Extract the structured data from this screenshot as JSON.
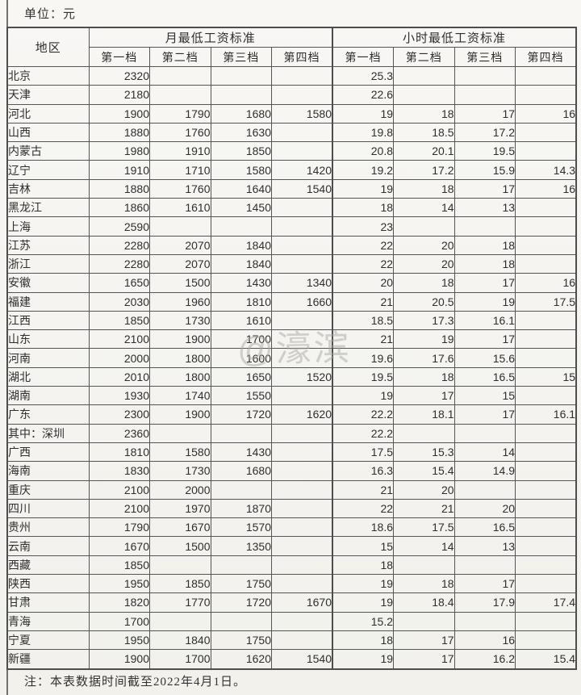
{
  "unit_label": "单位：元",
  "watermark": "@濠滨",
  "note": "注：本表数据时间截至2022年4月1日。",
  "colors": {
    "paper": "#f5f4f0",
    "border": "#555555",
    "text": "#2e2e2e",
    "watermark": "#a8a5a0"
  },
  "table": {
    "region_header": "地区",
    "group_headers": [
      "月最低工资标准",
      "小时最低工资标准"
    ],
    "tier_headers": [
      "第一档",
      "第二档",
      "第三档",
      "第四档"
    ],
    "rows": [
      {
        "region": "北京",
        "monthly": [
          "2320",
          "",
          "",
          ""
        ],
        "hourly": [
          "25.3",
          "",
          "",
          ""
        ]
      },
      {
        "region": "天津",
        "monthly": [
          "2180",
          "",
          "",
          ""
        ],
        "hourly": [
          "22.6",
          "",
          "",
          ""
        ]
      },
      {
        "region": "河北",
        "monthly": [
          "1900",
          "1790",
          "1680",
          "1580"
        ],
        "hourly": [
          "19",
          "18",
          "17",
          "16"
        ]
      },
      {
        "region": "山西",
        "monthly": [
          "1880",
          "1760",
          "1630",
          ""
        ],
        "hourly": [
          "19.8",
          "18.5",
          "17.2",
          ""
        ]
      },
      {
        "region": "内蒙古",
        "monthly": [
          "1980",
          "1910",
          "1850",
          ""
        ],
        "hourly": [
          "20.8",
          "20.1",
          "19.5",
          ""
        ]
      },
      {
        "region": "辽宁",
        "monthly": [
          "1910",
          "1710",
          "1580",
          "1420"
        ],
        "hourly": [
          "19.2",
          "17.2",
          "15.9",
          "14.3"
        ]
      },
      {
        "region": "吉林",
        "monthly": [
          "1880",
          "1760",
          "1640",
          "1540"
        ],
        "hourly": [
          "19",
          "18",
          "17",
          "16"
        ]
      },
      {
        "region": "黑龙江",
        "monthly": [
          "1860",
          "1610",
          "1450",
          ""
        ],
        "hourly": [
          "18",
          "14",
          "13",
          ""
        ]
      },
      {
        "region": "上海",
        "monthly": [
          "2590",
          "",
          "",
          ""
        ],
        "hourly": [
          "23",
          "",
          "",
          ""
        ]
      },
      {
        "region": "江苏",
        "monthly": [
          "2280",
          "2070",
          "1840",
          ""
        ],
        "hourly": [
          "22",
          "20",
          "18",
          ""
        ]
      },
      {
        "region": "浙江",
        "monthly": [
          "2280",
          "2070",
          "1840",
          ""
        ],
        "hourly": [
          "22",
          "20",
          "18",
          ""
        ]
      },
      {
        "region": "安徽",
        "monthly": [
          "1650",
          "1500",
          "1430",
          "1340"
        ],
        "hourly": [
          "20",
          "18",
          "17",
          "16"
        ]
      },
      {
        "region": "福建",
        "monthly": [
          "2030",
          "1960",
          "1810",
          "1660"
        ],
        "hourly": [
          "21",
          "20.5",
          "19",
          "17.5"
        ]
      },
      {
        "region": "江西",
        "monthly": [
          "1850",
          "1730",
          "1610",
          ""
        ],
        "hourly": [
          "18.5",
          "17.3",
          "16.1",
          ""
        ]
      },
      {
        "region": "山东",
        "monthly": [
          "2100",
          "1900",
          "1700",
          ""
        ],
        "hourly": [
          "21",
          "19",
          "17",
          ""
        ]
      },
      {
        "region": "河南",
        "monthly": [
          "2000",
          "1800",
          "1600",
          ""
        ],
        "hourly": [
          "19.6",
          "17.6",
          "15.6",
          ""
        ]
      },
      {
        "region": "湖北",
        "monthly": [
          "2010",
          "1800",
          "1650",
          "1520"
        ],
        "hourly": [
          "19.5",
          "18",
          "16.5",
          "15"
        ]
      },
      {
        "region": "湖南",
        "monthly": [
          "1930",
          "1740",
          "1550",
          ""
        ],
        "hourly": [
          "19",
          "17",
          "15",
          ""
        ]
      },
      {
        "region": "广东",
        "monthly": [
          "2300",
          "1900",
          "1720",
          "1620"
        ],
        "hourly": [
          "22.2",
          "18.1",
          "17",
          "16.1"
        ]
      },
      {
        "region": "其中：深圳",
        "monthly": [
          "2360",
          "",
          "",
          ""
        ],
        "hourly": [
          "22.2",
          "",
          "",
          ""
        ]
      },
      {
        "region": "广西",
        "monthly": [
          "1810",
          "1580",
          "1430",
          ""
        ],
        "hourly": [
          "17.5",
          "15.3",
          "14",
          ""
        ]
      },
      {
        "region": "海南",
        "monthly": [
          "1830",
          "1730",
          "1680",
          ""
        ],
        "hourly": [
          "16.3",
          "15.4",
          "14.9",
          ""
        ]
      },
      {
        "region": "重庆",
        "monthly": [
          "2100",
          "2000",
          "",
          ""
        ],
        "hourly": [
          "21",
          "20",
          "",
          ""
        ]
      },
      {
        "region": "四川",
        "monthly": [
          "2100",
          "1970",
          "1870",
          ""
        ],
        "hourly": [
          "22",
          "21",
          "20",
          ""
        ]
      },
      {
        "region": "贵州",
        "monthly": [
          "1790",
          "1670",
          "1570",
          ""
        ],
        "hourly": [
          "18.6",
          "17.5",
          "16.5",
          ""
        ]
      },
      {
        "region": "云南",
        "monthly": [
          "1670",
          "1500",
          "1350",
          ""
        ],
        "hourly": [
          "15",
          "14",
          "13",
          ""
        ]
      },
      {
        "region": "西藏",
        "monthly": [
          "1850",
          "",
          "",
          ""
        ],
        "hourly": [
          "18",
          "",
          "",
          ""
        ]
      },
      {
        "region": "陕西",
        "monthly": [
          "1950",
          "1850",
          "1750",
          ""
        ],
        "hourly": [
          "19",
          "18",
          "17",
          ""
        ]
      },
      {
        "region": "甘肃",
        "monthly": [
          "1820",
          "1770",
          "1720",
          "1670"
        ],
        "hourly": [
          "19",
          "18.4",
          "17.9",
          "17.4"
        ]
      },
      {
        "region": "青海",
        "monthly": [
          "1700",
          "",
          "",
          ""
        ],
        "hourly": [
          "15.2",
          "",
          "",
          ""
        ]
      },
      {
        "region": "宁夏",
        "monthly": [
          "1950",
          "1840",
          "1750",
          ""
        ],
        "hourly": [
          "18",
          "17",
          "16",
          ""
        ]
      },
      {
        "region": "新疆",
        "monthly": [
          "1900",
          "1700",
          "1620",
          "1540"
        ],
        "hourly": [
          "19",
          "17",
          "16.2",
          "15.4"
        ]
      }
    ]
  }
}
